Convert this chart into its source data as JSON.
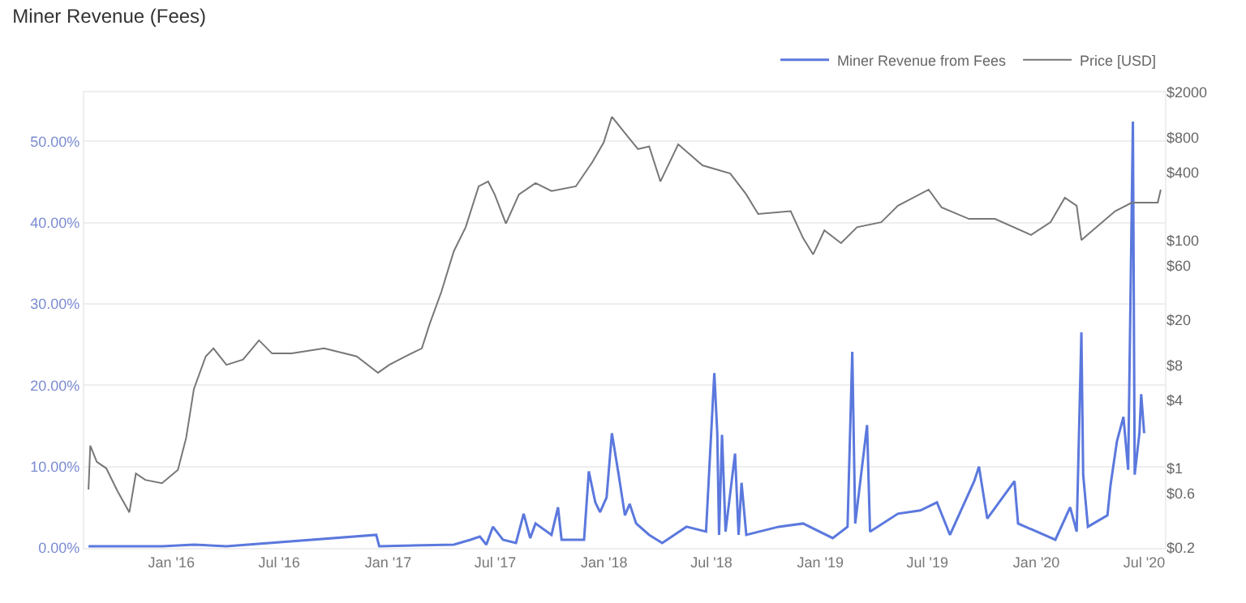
{
  "chart_data": {
    "type": "line",
    "title": "Miner Revenue (Fees)",
    "xlim": [
      "2015-08-07",
      "2020-08-05"
    ],
    "xticks": [
      {
        "value": "2016-01-01",
        "label": "Jan '16"
      },
      {
        "value": "2016-07-01",
        "label": "Jul '16"
      },
      {
        "value": "2017-01-01",
        "label": "Jan '17"
      },
      {
        "value": "2017-07-01",
        "label": "Jul '17"
      },
      {
        "value": "2018-01-01",
        "label": "Jan '18"
      },
      {
        "value": "2018-07-01",
        "label": "Jul '18"
      },
      {
        "value": "2019-01-01",
        "label": "Jan '19"
      },
      {
        "value": "2019-07-01",
        "label": "Jul '19"
      },
      {
        "value": "2020-01-01",
        "label": "Jan '20"
      },
      {
        "value": "2020-07-01",
        "label": "Jul '20"
      }
    ],
    "ylim": [
      0,
      56
    ],
    "yticks": [
      {
        "value": 0,
        "label": "0.00%"
      },
      {
        "value": 10,
        "label": "10.00%"
      },
      {
        "value": 20,
        "label": "20.00%"
      },
      {
        "value": 30,
        "label": "30.00%"
      },
      {
        "value": 40,
        "label": "40.00%"
      },
      {
        "value": 50,
        "label": "50.00%"
      }
    ],
    "y2lim": [
      0.2,
      2000
    ],
    "y2ticks": [
      {
        "value": 0.2,
        "label": "$0.2"
      },
      {
        "value": 0.6,
        "label": "$0.6"
      },
      {
        "value": 1,
        "label": "$1"
      },
      {
        "value": 4,
        "label": "$4"
      },
      {
        "value": 8,
        "label": "$8"
      },
      {
        "value": 20,
        "label": "$20"
      },
      {
        "value": 60,
        "label": "$60"
      },
      {
        "value": 100,
        "label": "$100"
      },
      {
        "value": 400,
        "label": "$400"
      },
      {
        "value": 800,
        "label": "$800"
      },
      {
        "value": 2000,
        "label": "$2000"
      }
    ],
    "log": "y2",
    "grid": "y",
    "legend": "top right",
    "marker": "none",
    "line_style": "solid",
    "series": [
      {
        "name": "Price [USD]",
        "color": "#777777",
        "axis": "y2",
        "x": [
          "2015-08-14",
          "2015-08-17",
          "2015-08-28",
          "2015-09-13",
          "2015-10-02",
          "2015-10-22",
          "2015-11-02",
          "2015-11-18",
          "2015-12-16",
          "2016-01-12",
          "2016-01-26",
          "2016-02-08",
          "2016-02-28",
          "2016-03-12",
          "2016-04-03",
          "2016-05-01",
          "2016-05-28",
          "2016-06-19",
          "2016-07-22",
          "2016-09-15",
          "2016-11-09",
          "2016-12-15",
          "2017-01-03",
          "2017-01-30",
          "2017-02-27",
          "2017-03-12",
          "2017-04-01",
          "2017-04-22",
          "2017-05-12",
          "2017-06-03",
          "2017-06-19",
          "2017-06-30",
          "2017-07-19",
          "2017-08-10",
          "2017-09-07",
          "2017-10-04",
          "2017-11-14",
          "2017-12-12",
          "2017-12-31",
          "2018-01-14",
          "2018-02-05",
          "2018-02-27",
          "2018-03-18",
          "2018-04-06",
          "2018-05-06",
          "2018-06-16",
          "2018-08-02",
          "2018-08-29",
          "2018-09-18",
          "2018-11-12",
          "2018-12-03",
          "2018-12-20",
          "2019-01-08",
          "2019-02-05",
          "2019-03-04",
          "2019-04-14",
          "2019-05-12",
          "2019-07-03",
          "2019-07-25",
          "2019-09-09",
          "2019-10-23",
          "2019-12-23",
          "2020-01-25",
          "2020-02-18",
          "2020-03-09",
          "2020-03-17",
          "2020-04-05",
          "2020-05-13",
          "2020-06-10",
          "2020-07-24",
          "2020-07-29"
        ],
        "values": [
          0.65,
          1.58,
          1.14,
          1.0,
          0.63,
          0.41,
          0.9,
          0.79,
          0.74,
          0.97,
          1.86,
          4.97,
          9.6,
          11.3,
          8.1,
          9.0,
          13.3,
          10.2,
          10.2,
          11.3,
          9.6,
          6.9,
          8.1,
          9.6,
          11.3,
          18.4,
          35.5,
          80.6,
          131,
          299,
          330,
          254,
          141,
          254,
          320,
          272,
          299,
          489,
          724,
          1223,
          881,
          636,
          670,
          330,
          700,
          457,
          388,
          254,
          171,
          181,
          105,
          75.5,
          123,
          95,
          131,
          145,
          202,
          280,
          195,
          155,
          155,
          112,
          145,
          238,
          202,
          101,
          123,
          181,
          215,
          215,
          280
        ]
      },
      {
        "name": "Miner Revenue from Fees",
        "color": "#5b78dd",
        "x": [
          "2015-08-14",
          "2015-12-16",
          "2016-02-08",
          "2016-04-03",
          "2016-12-12",
          "2016-12-17",
          "2017-04-22",
          "2017-05-20",
          "2017-06-05",
          "2017-06-16",
          "2017-06-27",
          "2017-07-14",
          "2017-08-05",
          "2017-08-18",
          "2017-08-29",
          "2017-09-07",
          "2017-10-04",
          "2017-10-15",
          "2017-10-21",
          "2017-11-28",
          "2017-12-06",
          "2017-12-17",
          "2017-12-25",
          "2018-01-05",
          "2018-01-14",
          "2018-01-25",
          "2018-02-05",
          "2018-02-13",
          "2018-02-24",
          "2018-03-18",
          "2018-04-09",
          "2018-05-20",
          "2018-06-22",
          "2018-07-06",
          "2018-07-11",
          "2018-07-14",
          "2018-07-19",
          "2018-07-25",
          "2018-08-10",
          "2018-08-16",
          "2018-08-21",
          "2018-08-29",
          "2018-10-23",
          "2018-12-03",
          "2019-01-22",
          "2019-02-16",
          "2019-02-24",
          "2019-03-01",
          "2019-03-21",
          "2019-03-26",
          "2019-05-12",
          "2019-06-19",
          "2019-07-17",
          "2019-08-08",
          "2019-09-18",
          "2019-09-26",
          "2019-10-10",
          "2019-11-25",
          "2019-12-01",
          "2020-02-02",
          "2020-02-27",
          "2020-03-09",
          "2020-03-17",
          "2020-03-20",
          "2020-03-28",
          "2020-04-30",
          "2020-05-05",
          "2020-05-16",
          "2020-05-27",
          "2020-06-04",
          "2020-06-12",
          "2020-06-15",
          "2020-06-23",
          "2020-06-26",
          "2020-07-01"
        ],
        "values": [
          0.2,
          0.2,
          0.4,
          0.2,
          1.6,
          0.2,
          0.4,
          1.0,
          1.4,
          0.4,
          2.6,
          1.0,
          0.6,
          4.2,
          1.2,
          3.0,
          1.6,
          5.0,
          1.0,
          1.0,
          9.4,
          5.6,
          4.4,
          6.2,
          14.1,
          9.2,
          4.0,
          5.4,
          3.0,
          1.6,
          0.6,
          2.6,
          2.0,
          21.5,
          14.1,
          1.6,
          13.9,
          2.0,
          11.6,
          1.6,
          8.0,
          1.6,
          2.6,
          3.0,
          1.2,
          2.6,
          24.1,
          3.0,
          15.1,
          2.0,
          4.2,
          4.6,
          5.6,
          1.6,
          8.2,
          10.0,
          3.6,
          8.2,
          3.0,
          1.0,
          5.0,
          2.0,
          26.5,
          9.0,
          2.6,
          4.0,
          7.6,
          13.1,
          16.1,
          9.6,
          52.4,
          9.0,
          14.1,
          18.9,
          14.1
        ]
      }
    ]
  }
}
